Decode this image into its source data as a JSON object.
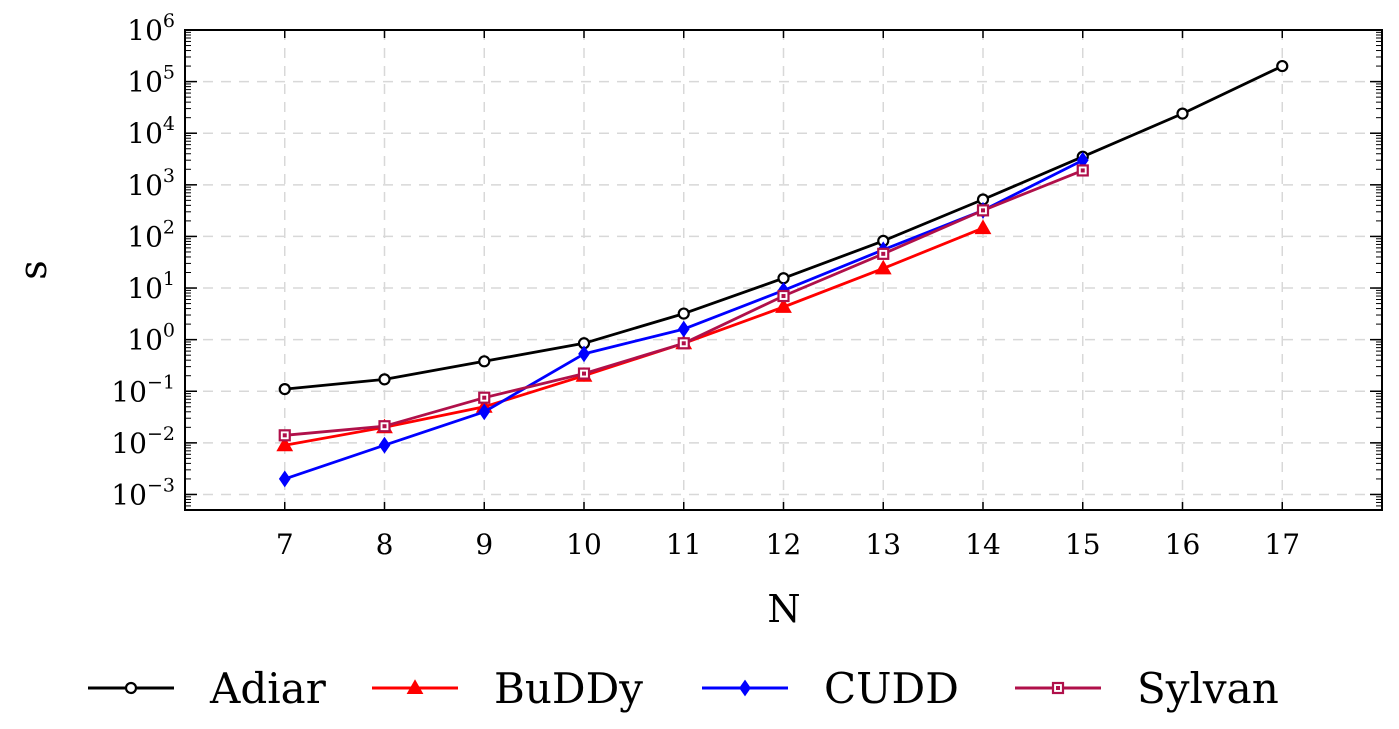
{
  "chart_data": {
    "type": "line",
    "title": "",
    "xlabel": "N",
    "ylabel": "s",
    "y_scale": "log",
    "grid": true,
    "grid_style": "dashed",
    "legend_position": "bottom",
    "xlim": [
      6,
      18
    ],
    "ylim": [
      0.0005,
      1000000
    ],
    "x_ticks": [
      7,
      8,
      9,
      10,
      11,
      12,
      13,
      14,
      15,
      16,
      17
    ],
    "y_ticks": [
      {
        "value": 0.001,
        "base": "10",
        "exp": "−3"
      },
      {
        "value": 0.01,
        "base": "10",
        "exp": "−2"
      },
      {
        "value": 0.1,
        "base": "10",
        "exp": "−1"
      },
      {
        "value": 1,
        "base": "10",
        "exp": "0"
      },
      {
        "value": 10,
        "base": "10",
        "exp": "1"
      },
      {
        "value": 100,
        "base": "10",
        "exp": "2"
      },
      {
        "value": 1000,
        "base": "10",
        "exp": "3"
      },
      {
        "value": 10000,
        "base": "10",
        "exp": "4"
      },
      {
        "value": 100000,
        "base": "10",
        "exp": "5"
      },
      {
        "value": 1000000,
        "base": "10",
        "exp": "6"
      }
    ],
    "series": [
      {
        "name": "Adiar",
        "color": "#000000",
        "marker": "circle",
        "x": [
          7,
          8,
          9,
          10,
          11,
          12,
          13,
          14,
          15,
          16,
          17
        ],
        "y": [
          0.11,
          0.17,
          0.38,
          0.85,
          3.2,
          15.5,
          82,
          520,
          3500,
          24000,
          200000
        ]
      },
      {
        "name": "BuDDy",
        "color": "#ff0000",
        "marker": "triangle",
        "x": [
          7,
          8,
          9,
          10,
          11,
          12,
          13,
          14
        ],
        "y": [
          0.009,
          0.02,
          0.05,
          0.2,
          0.85,
          4.3,
          24,
          145
        ]
      },
      {
        "name": "CUDD",
        "color": "#0000ff",
        "marker": "diamond",
        "x": [
          7,
          8,
          9,
          10,
          11,
          12,
          13,
          14,
          15
        ],
        "y": [
          0.002,
          0.009,
          0.04,
          0.53,
          1.6,
          9,
          55,
          320,
          3000
        ]
      },
      {
        "name": "Sylvan",
        "color": "#b0104a",
        "marker": "square",
        "x": [
          7,
          8,
          9,
          10,
          11,
          12,
          13,
          14,
          15
        ],
        "y": [
          0.014,
          0.021,
          0.075,
          0.22,
          0.85,
          7,
          46,
          320,
          1900
        ]
      }
    ]
  }
}
